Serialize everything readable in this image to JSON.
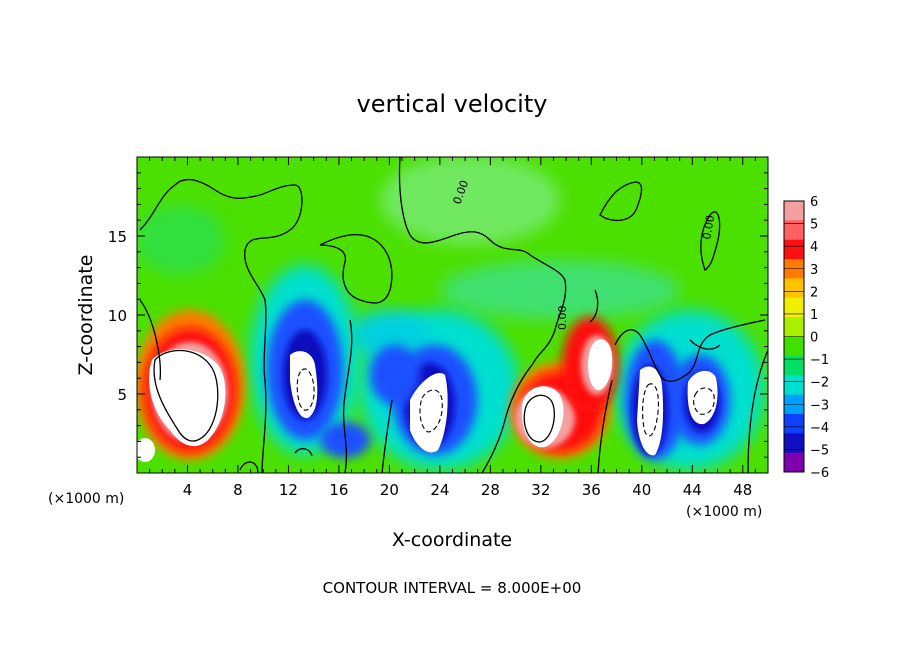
{
  "chart_data": {
    "type": "heatmap",
    "title": "vertical velocity",
    "xlabel": "X-coordinate",
    "ylabel": "Z-coordinate",
    "x_multiplier": "(×1000 m)",
    "z_multiplier": "(×1000 m)",
    "xlim": [
      0,
      50
    ],
    "zlim": [
      0,
      20
    ],
    "x_ticks": [
      4,
      8,
      12,
      16,
      20,
      24,
      28,
      32,
      36,
      40,
      44,
      48
    ],
    "z_ticks": [
      5,
      10,
      15
    ],
    "colorbar": {
      "min": -6,
      "max": 6,
      "ticks": [
        "6",
        "5",
        "4",
        "3",
        "2",
        "1",
        "0",
        "−1",
        "−2",
        "−3",
        "−4",
        "−5",
        "−6"
      ],
      "colors": [
        "#f4a0a0",
        "#ff6060",
        "#ff1010",
        "#ff7a00",
        "#ffc400",
        "#f0f000",
        "#a8f000",
        "#40e000",
        "#00e066",
        "#00e0d0",
        "#00a0ff",
        "#1040ff",
        "#1010c0",
        "#8000b0"
      ]
    },
    "contour_labels": [
      "0.00",
      "0.00",
      "0.00"
    ],
    "features": [
      {
        "type": "updraft",
        "x": 4.5,
        "z": 5.5,
        "value": 8
      },
      {
        "type": "downdraft",
        "x": 13.5,
        "z": 6,
        "value": -8
      },
      {
        "type": "downdraft",
        "x": 23,
        "z": 4,
        "value": -8
      },
      {
        "type": "updraft",
        "x": 32,
        "z": 4,
        "value": 8
      },
      {
        "type": "updraft",
        "x": 36,
        "z": 8,
        "value": 6
      },
      {
        "type": "downdraft",
        "x": 40.5,
        "z": 4.5,
        "value": -8
      },
      {
        "type": "downdraft",
        "x": 45,
        "z": 4.5,
        "value": -8
      }
    ],
    "annotation": "CONTOUR INTERVAL = 8.000E+00"
  }
}
